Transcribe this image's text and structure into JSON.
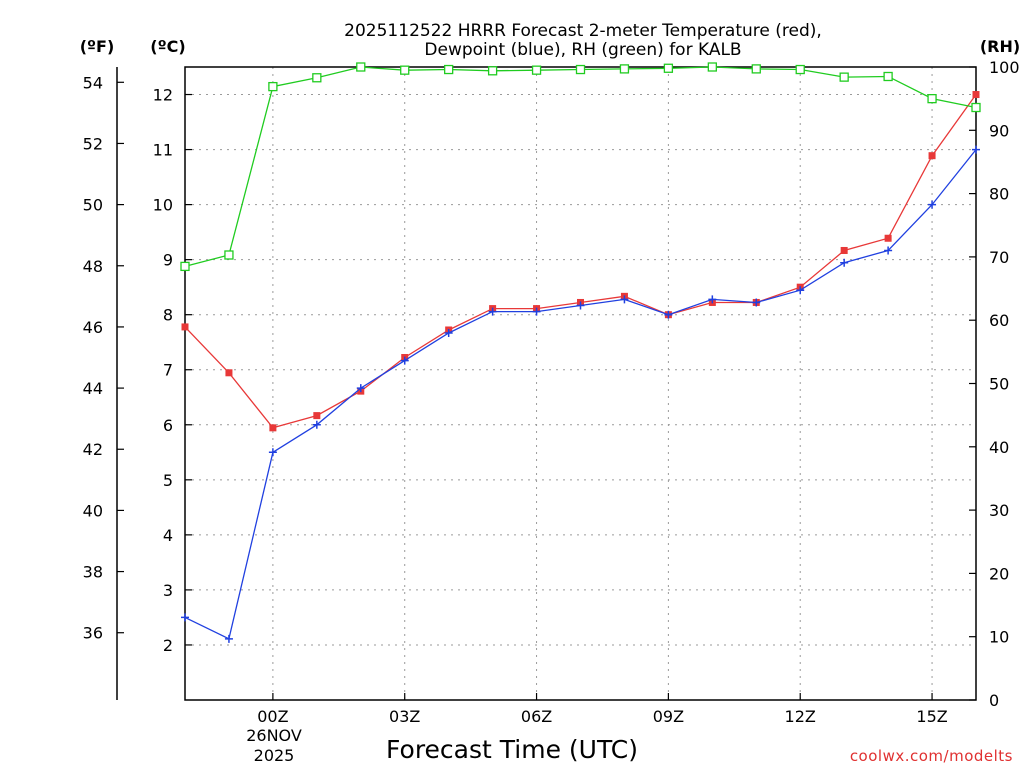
{
  "chart_data": {
    "type": "line",
    "title_line1": "2025112522 HRRR Forecast 2-meter Temperature (red),",
    "title_line2": "Dewpoint (blue), RH (green) for KALB",
    "xlabel": "Forecast Time (UTC)",
    "x_ticks": [
      "00Z",
      "03Z",
      "06Z",
      "09Z",
      "12Z",
      "15Z"
    ],
    "x_ticks_hour": [
      0,
      3,
      6,
      9,
      12,
      15
    ],
    "date_label_line1": "26NOV",
    "date_label_line2": "2025",
    "xlim": [
      -2,
      16
    ],
    "hours": [
      -2,
      -1,
      0,
      1,
      2,
      3,
      4,
      5,
      6,
      7,
      8,
      9,
      10,
      11,
      12,
      13,
      14,
      15,
      16
    ],
    "left_axis_f": {
      "label": "(ºF)",
      "ticks": [
        36,
        38,
        40,
        42,
        44,
        46,
        48,
        50,
        52,
        54
      ],
      "ylim": [
        33.8,
        54.5
      ]
    },
    "left_axis_c": {
      "label": "(ºC)",
      "ticks": [
        2,
        3,
        4,
        5,
        6,
        7,
        8,
        9,
        10,
        11,
        12
      ],
      "ylim": [
        1,
        12.5
      ]
    },
    "right_axis_rh": {
      "label": "(RH)",
      "ticks": [
        0,
        10,
        20,
        30,
        40,
        50,
        60,
        70,
        80,
        90,
        100
      ],
      "ylim": [
        0,
        100
      ]
    },
    "series": [
      {
        "name": "Temperature",
        "units": "F",
        "color": "#e83838",
        "marker": "square-filled",
        "values": [
          46.0,
          44.5,
          42.7,
          43.1,
          43.9,
          45.0,
          45.9,
          46.6,
          46.6,
          46.8,
          47.0,
          46.4,
          46.8,
          46.8,
          47.3,
          48.5,
          48.9,
          51.6,
          53.6
        ]
      },
      {
        "name": "Dewpoint",
        "units": "F",
        "color": "#2040e0",
        "marker": "plus",
        "values": [
          36.5,
          35.8,
          41.9,
          42.8,
          44.0,
          44.9,
          45.8,
          46.5,
          46.5,
          46.7,
          46.9,
          46.4,
          46.9,
          46.8,
          47.2,
          48.1,
          48.5,
          50.0,
          51.8
        ]
      },
      {
        "name": "RH",
        "units": "%",
        "color": "#20cc20",
        "marker": "square-open",
        "values": [
          68.5,
          70.3,
          96.9,
          98.3,
          100,
          99.5,
          99.6,
          99.4,
          99.5,
          99.6,
          99.7,
          99.8,
          100,
          99.7,
          99.6,
          98.4,
          98.5,
          95.0,
          93.6
        ]
      }
    ],
    "credit": "coolwx.com/modelts"
  },
  "colors": {
    "frame": "#000000",
    "grid": "#9a9a9a",
    "credit": "#e03030"
  }
}
